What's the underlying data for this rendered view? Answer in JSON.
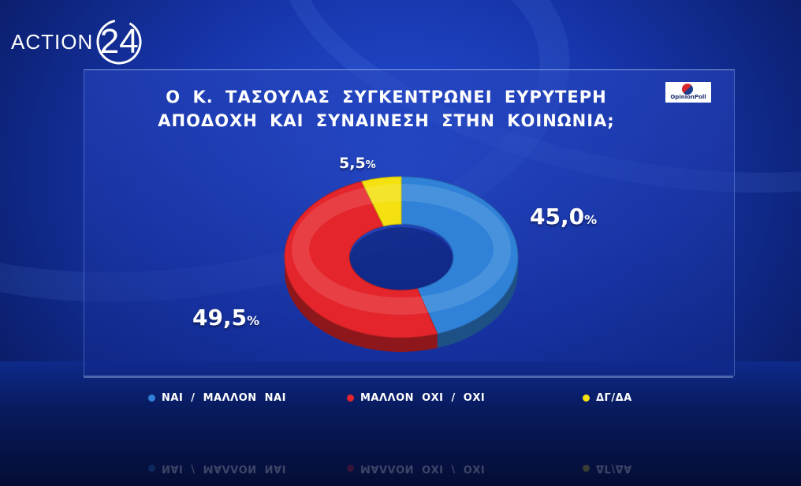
{
  "logo": {
    "word": "ACTION",
    "number": "24"
  },
  "poll_logo": {
    "text": "OpinionPoll"
  },
  "colors": {
    "blue": "#2f82d8",
    "red": "#e4252b",
    "yellow": "#f4e10f"
  },
  "chart_data": {
    "type": "pie",
    "variant": "donut",
    "title": "Ο Κ. ΤΑΣΟΥΛΑΣ ΣΥΓΚΕΝΤΡΩΝΕΙ ΕΥΡΥΤΕΡΗ ΑΠΟΔΟΧΗ ΚΑΙ ΣΥΝΑΙΝΕΣΗ ΣΤΗΝ ΚΟΙΝΩΝΙΑ;",
    "legend_position": "bottom",
    "slices": [
      {
        "label": "ΝΑΙ / ΜΑΛΛΟΝ ΝΑΙ",
        "value": 45.0,
        "display": "45,0",
        "unit": "%",
        "color": "#2f82d8"
      },
      {
        "label": "ΜΑΛΛΟΝ ΟΧΙ / ΟΧΙ",
        "value": 49.5,
        "display": "49,5",
        "unit": "%",
        "color": "#e4252b"
      },
      {
        "label": "ΔΓ/ΔΑ",
        "value": 5.5,
        "display": "5,5",
        "unit": "%",
        "color": "#f4e10f"
      }
    ]
  }
}
